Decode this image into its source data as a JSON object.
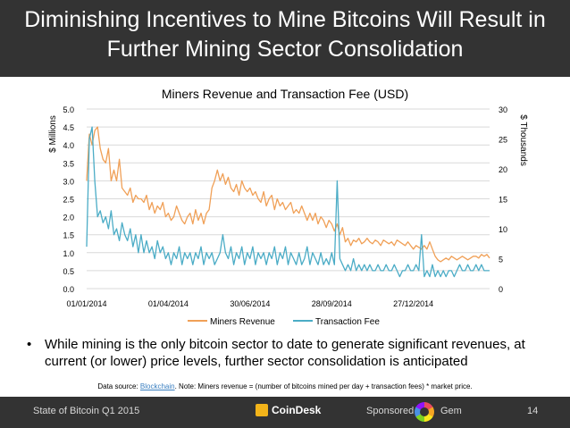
{
  "slide": {
    "title_line1": "Diminishing Incentives to Mine Bitcoins Will Result in",
    "title_line2": "Further Mining Sector Consolidation",
    "bullet_symbol": "•",
    "bullet_text": "While mining is the only bitcoin sector to date to generate significant revenues, at current (or lower) price levels, further sector consolidation is anticipated",
    "source_prefix": "Data source: ",
    "source_link": "Blockchain",
    "source_note": ". Note: Miners revenue = (number of bitcoins mined per day + transaction fees) * market price."
  },
  "footer": {
    "left_text": "State of Bitcoin Q1 2015",
    "logo_text": "CoinDesk",
    "sponsored_text": "Sponsored by",
    "sponsor_name": "Gem",
    "page_number": "14"
  },
  "colors": {
    "header_bg": "#333333",
    "miners_revenue": "#f0a057",
    "transaction_fee": "#4bacc6",
    "gridline": "#d9d9d9"
  },
  "chart_data": {
    "type": "line",
    "title": "Miners Revenue and Transaction Fee (USD)",
    "y_left_label": "$ Millions",
    "y_right_label": "$ Thousands",
    "y_left_ticks": [
      "0.0",
      "0.5",
      "1.0",
      "1.5",
      "2.0",
      "2.5",
      "3.0",
      "3.5",
      "4.0",
      "4.5",
      "5.0"
    ],
    "y_right_ticks": [
      "0",
      "5",
      "10",
      "15",
      "20",
      "25",
      "30"
    ],
    "y_left_range": [
      0,
      5
    ],
    "y_right_range": [
      0,
      30
    ],
    "x_ticks": [
      "01/01/2014",
      "01/04/2014",
      "30/06/2014",
      "28/09/2014",
      "27/12/2014"
    ],
    "x_tick_days": [
      0,
      90,
      180,
      270,
      360
    ],
    "x_range_days": [
      0,
      444
    ],
    "grid": true,
    "legend_position": "bottom",
    "series": [
      {
        "name": "Miners Revenue",
        "axis": "left",
        "x_days": [
          0,
          3,
          6,
          9,
          12,
          15,
          18,
          21,
          24,
          27,
          30,
          33,
          36,
          39,
          42,
          45,
          48,
          51,
          54,
          57,
          60,
          63,
          66,
          69,
          72,
          75,
          78,
          81,
          84,
          87,
          90,
          93,
          96,
          99,
          102,
          105,
          108,
          111,
          114,
          117,
          120,
          123,
          126,
          129,
          132,
          135,
          138,
          141,
          144,
          147,
          150,
          153,
          156,
          159,
          162,
          165,
          168,
          171,
          174,
          177,
          180,
          183,
          186,
          189,
          192,
          195,
          198,
          201,
          204,
          207,
          210,
          213,
          216,
          219,
          222,
          225,
          228,
          231,
          234,
          237,
          240,
          243,
          246,
          249,
          252,
          255,
          258,
          261,
          264,
          267,
          270,
          273,
          276,
          279,
          282,
          285,
          288,
          291,
          294,
          297,
          300,
          303,
          306,
          309,
          312,
          315,
          318,
          321,
          324,
          327,
          330,
          333,
          336,
          339,
          342,
          345,
          348,
          351,
          354,
          357,
          360,
          363,
          366,
          369,
          372,
          375,
          378,
          381,
          384,
          387,
          390,
          393,
          396,
          399,
          402,
          405,
          408,
          411,
          414,
          417,
          420,
          423,
          426,
          429,
          432,
          435,
          438,
          441,
          444
        ],
        "values": [
          3.0,
          4.3,
          4.0,
          4.4,
          4.5,
          3.9,
          3.6,
          3.5,
          3.9,
          3.0,
          3.3,
          3.0,
          3.6,
          2.8,
          2.7,
          2.6,
          2.8,
          2.4,
          2.6,
          2.5,
          2.5,
          2.4,
          2.6,
          2.2,
          2.4,
          2.1,
          2.3,
          2.2,
          2.4,
          2.0,
          2.1,
          1.9,
          2.0,
          2.3,
          2.1,
          1.9,
          1.8,
          2.0,
          2.1,
          1.8,
          2.2,
          1.9,
          2.1,
          1.8,
          2.1,
          2.2,
          2.8,
          3.0,
          3.3,
          3.0,
          3.2,
          2.9,
          3.1,
          2.8,
          2.7,
          2.9,
          2.6,
          3.0,
          2.8,
          2.7,
          2.8,
          2.6,
          2.7,
          2.5,
          2.4,
          2.7,
          2.3,
          2.5,
          2.6,
          2.2,
          2.5,
          2.3,
          2.4,
          2.2,
          2.3,
          2.4,
          2.1,
          2.2,
          2.1,
          2.3,
          2.1,
          1.9,
          2.1,
          1.9,
          2.1,
          1.8,
          2.0,
          1.9,
          1.7,
          1.9,
          1.8,
          1.6,
          1.8,
          1.5,
          1.7,
          1.3,
          1.4,
          1.2,
          1.35,
          1.3,
          1.4,
          1.25,
          1.3,
          1.4,
          1.3,
          1.25,
          1.35,
          1.3,
          1.2,
          1.35,
          1.3,
          1.25,
          1.3,
          1.2,
          1.35,
          1.3,
          1.25,
          1.2,
          1.3,
          1.2,
          1.1,
          1.2,
          1.15,
          1.1,
          1.2,
          1.1,
          1.3,
          1.1,
          0.9,
          0.8,
          0.75,
          0.8,
          0.85,
          0.8,
          0.9,
          0.85,
          0.8,
          0.85,
          0.9,
          0.85,
          0.8,
          0.85,
          0.9,
          0.9,
          0.85,
          0.95,
          0.9,
          0.95,
          0.85
        ]
      },
      {
        "name": "Transaction Fee",
        "axis": "right",
        "x_days": [
          0,
          3,
          6,
          9,
          12,
          15,
          18,
          21,
          24,
          27,
          30,
          33,
          36,
          39,
          42,
          45,
          48,
          51,
          54,
          57,
          60,
          63,
          66,
          69,
          72,
          75,
          78,
          81,
          84,
          87,
          90,
          93,
          96,
          99,
          102,
          105,
          108,
          111,
          114,
          117,
          120,
          123,
          126,
          129,
          132,
          135,
          138,
          141,
          144,
          147,
          150,
          153,
          156,
          159,
          162,
          165,
          168,
          171,
          174,
          177,
          180,
          183,
          186,
          189,
          192,
          195,
          198,
          201,
          204,
          207,
          210,
          213,
          216,
          219,
          222,
          225,
          228,
          231,
          234,
          237,
          240,
          243,
          246,
          249,
          252,
          255,
          258,
          261,
          264,
          267,
          270,
          273,
          276,
          279,
          282,
          285,
          288,
          291,
          294,
          297,
          300,
          303,
          306,
          309,
          312,
          315,
          318,
          321,
          324,
          327,
          330,
          333,
          336,
          339,
          342,
          345,
          348,
          351,
          354,
          357,
          360,
          363,
          366,
          369,
          372,
          375,
          378,
          381,
          384,
          387,
          390,
          393,
          396,
          399,
          402,
          405,
          408,
          411,
          414,
          417,
          420,
          423,
          426,
          429,
          432,
          435,
          438,
          441,
          444
        ],
        "values": [
          7,
          25,
          27,
          18,
          12,
          13,
          11,
          12,
          10,
          13,
          9,
          10,
          8,
          11,
          9,
          8,
          10,
          7,
          9,
          6,
          9,
          6,
          8,
          6,
          7,
          5,
          8,
          6,
          7,
          5,
          6,
          4,
          6,
          5,
          7,
          4,
          6,
          5,
          6,
          4,
          6,
          5,
          7,
          4,
          6,
          5,
          6,
          4,
          5,
          6,
          9,
          6,
          5,
          7,
          4,
          6,
          5,
          7,
          4,
          6,
          5,
          7,
          4,
          6,
          5,
          6,
          4,
          6,
          5,
          7,
          4,
          6,
          5,
          7,
          4,
          6,
          5,
          4,
          6,
          4,
          5,
          7,
          4,
          6,
          5,
          4,
          6,
          4,
          5,
          4,
          6,
          4,
          18,
          5,
          4,
          3,
          4,
          3,
          5,
          3,
          4,
          3,
          4,
          3,
          4,
          3,
          3,
          4,
          3,
          3,
          4,
          3,
          3,
          4,
          3,
          2,
          3,
          3,
          4,
          3,
          3,
          4,
          3,
          9,
          2,
          3,
          2,
          4,
          2,
          3,
          2,
          3,
          2,
          3,
          3,
          2,
          3,
          4,
          3,
          3,
          4,
          3,
          3,
          4,
          3,
          4,
          3,
          3,
          3
        ]
      }
    ]
  }
}
